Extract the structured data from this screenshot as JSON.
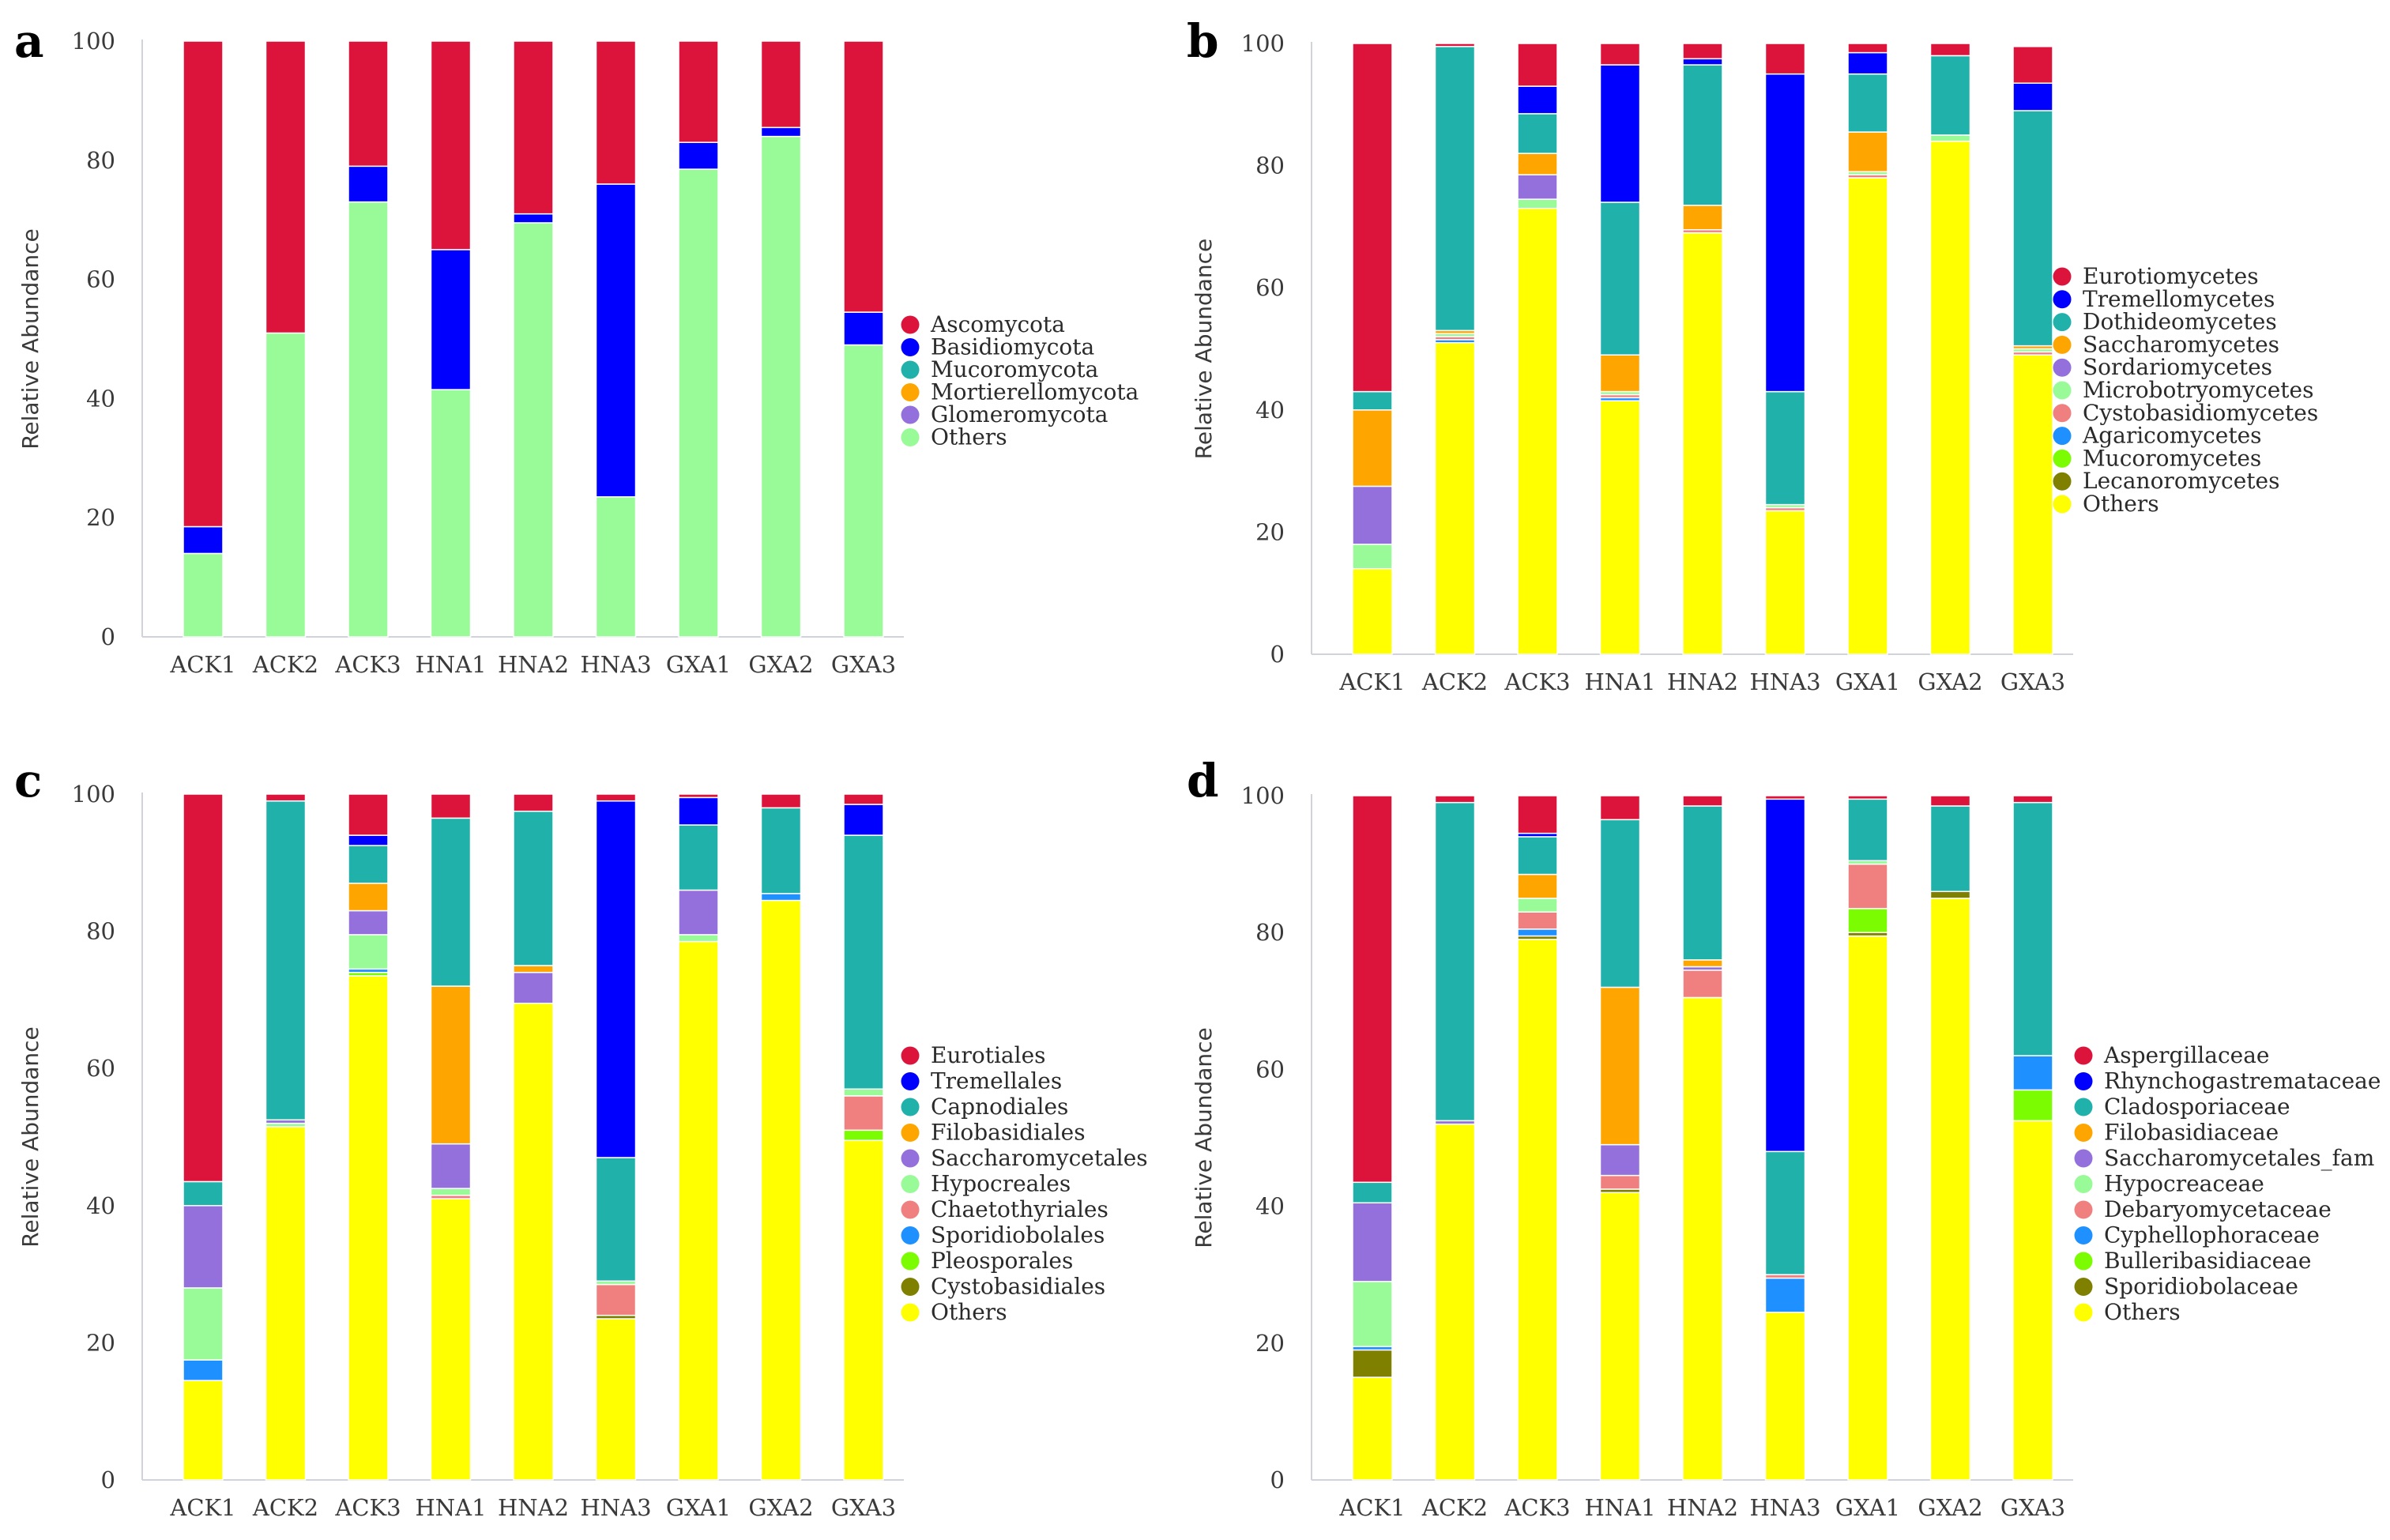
{
  "chart_data": [
    {
      "type": "stacked-bar",
      "panel_letter": "a",
      "ylabel": "Relative Abundance",
      "ylim": [
        0,
        100
      ],
      "yticks": [
        "0",
        "20",
        "40",
        "60",
        "80",
        "100"
      ],
      "categories": [
        "ACK1",
        "ACK2",
        "ACK3",
        "HNA1",
        "HNA2",
        "HNA3",
        "GXA1",
        "GXA2",
        "GXA3"
      ],
      "legend_position": "right",
      "series": [
        {
          "name": "Others",
          "color": "#98fb98",
          "values": [
            14,
            51,
            73,
            41.5,
            69.5,
            23.5,
            78.5,
            84,
            49
          ]
        },
        {
          "name": "Glomeromycota",
          "color": "#9370db",
          "values": [
            0,
            0,
            0,
            0,
            0,
            0,
            0,
            0,
            0
          ]
        },
        {
          "name": "Mortierellomycota",
          "color": "#ffa500",
          "values": [
            0,
            0,
            0,
            0,
            0,
            0,
            0,
            0,
            0
          ]
        },
        {
          "name": "Mucoromycota",
          "color": "#20b2aa",
          "values": [
            0,
            0,
            0,
            0,
            0,
            0,
            0,
            0,
            0
          ]
        },
        {
          "name": "Basidiomycota",
          "color": "#0000ff",
          "values": [
            4.5,
            0,
            6,
            23.5,
            1.5,
            52.5,
            4.5,
            1.5,
            5.5
          ]
        },
        {
          "name": "Ascomycota",
          "color": "#dc143c",
          "values": [
            81.5,
            49,
            21,
            35,
            29,
            24,
            17,
            14.5,
            45.5
          ]
        }
      ],
      "legend_order": [
        "Ascomycota",
        "Basidiomycota",
        "Mucoromycota",
        "Mortierellomycota",
        "Glomeromycota",
        "Others"
      ]
    },
    {
      "type": "stacked-bar",
      "panel_letter": "b",
      "ylabel": "Relative Abundance",
      "ylim": [
        0,
        100
      ],
      "yticks": [
        "0",
        "20",
        "40",
        "60",
        "80",
        "100"
      ],
      "categories": [
        "ACK1",
        "ACK2",
        "ACK3",
        "HNA1",
        "HNA2",
        "HNA3",
        "GXA1",
        "GXA2",
        "GXA3"
      ],
      "legend_position": "right",
      "series": [
        {
          "name": "Others",
          "color": "#ffff00",
          "values": [
            14,
            51,
            73,
            41.5,
            69,
            23.5,
            78,
            84,
            49
          ]
        },
        {
          "name": "Lecanoromycetes",
          "color": "#808000",
          "values": [
            0,
            0,
            0,
            0,
            0,
            0,
            0,
            0,
            0
          ]
        },
        {
          "name": "Mucoromycetes",
          "color": "#7cfc00",
          "values": [
            0,
            0,
            0,
            0,
            0,
            0,
            0,
            0,
            0
          ]
        },
        {
          "name": "Agaricomycetes",
          "color": "#1e90ff",
          "values": [
            0,
            0.5,
            0,
            0.5,
            0,
            0,
            0,
            0,
            0
          ]
        },
        {
          "name": "Cystobasidiomycetes",
          "color": "#f08080",
          "values": [
            0,
            0.5,
            0,
            0.5,
            0.5,
            0.5,
            0.5,
            0,
            0.5
          ]
        },
        {
          "name": "Microbotryomycetes",
          "color": "#98fb98",
          "values": [
            4,
            0.5,
            1.5,
            0.5,
            0,
            0.5,
            0.5,
            1,
            0.5
          ]
        },
        {
          "name": "Sordariomycetes",
          "color": "#9370db",
          "values": [
            9.5,
            0,
            4,
            0,
            0,
            0,
            0,
            0,
            0
          ]
        },
        {
          "name": "Saccharomycetes",
          "color": "#ffa500",
          "values": [
            12.5,
            0.5,
            3.5,
            6,
            4,
            0,
            6.5,
            0,
            0.5
          ]
        },
        {
          "name": "Dothideomycetes",
          "color": "#20b2aa",
          "values": [
            3,
            46.5,
            6.5,
            25,
            23,
            18.5,
            9.5,
            13,
            38.5
          ]
        },
        {
          "name": "Tremellomycetes",
          "color": "#0000ff",
          "values": [
            0,
            0,
            4.5,
            22.5,
            1,
            52,
            3.5,
            0,
            4.5
          ]
        },
        {
          "name": "Eurotiomycetes",
          "color": "#dc143c",
          "values": [
            57,
            0.5,
            7,
            3.5,
            2.5,
            5,
            1.5,
            2,
            6
          ]
        }
      ],
      "legend_order": [
        "Eurotiomycetes",
        "Tremellomycetes",
        "Dothideomycetes",
        "Saccharomycetes",
        "Sordariomycetes",
        "Microbotryomycetes",
        "Cystobasidiomycetes",
        "Agaricomycetes",
        "Mucoromycetes",
        "Lecanoromycetes",
        "Others"
      ]
    },
    {
      "type": "stacked-bar",
      "panel_letter": "c",
      "ylabel": "Relative Abundance",
      "ylim": [
        0,
        100
      ],
      "yticks": [
        "0",
        "20",
        "40",
        "60",
        "80",
        "100"
      ],
      "categories": [
        "ACK1",
        "ACK2",
        "ACK3",
        "HNA1",
        "HNA2",
        "HNA3",
        "GXA1",
        "GXA2",
        "GXA3"
      ],
      "legend_position": "right",
      "series": [
        {
          "name": "Others",
          "color": "#ffff00",
          "values": [
            14.5,
            51.5,
            73.5,
            41,
            69.5,
            23.5,
            78.5,
            84.5,
            49.5
          ]
        },
        {
          "name": "Cystobasidiales",
          "color": "#808000",
          "values": [
            0,
            0,
            0,
            0,
            0,
            0.5,
            0,
            0,
            0
          ]
        },
        {
          "name": "Pleosporales",
          "color": "#7cfc00",
          "values": [
            0,
            0,
            0.5,
            0,
            0,
            0,
            0,
            0,
            1.5
          ]
        },
        {
          "name": "Sporidiobolales",
          "color": "#1e90ff",
          "values": [
            3,
            0,
            0.5,
            0,
            0,
            0,
            0,
            1,
            0
          ]
        },
        {
          "name": "Chaetothyriales",
          "color": "#f08080",
          "values": [
            0,
            0,
            0,
            0.5,
            0,
            4.5,
            0,
            0,
            5
          ]
        },
        {
          "name": "Hypocreales",
          "color": "#98fb98",
          "values": [
            10.5,
            0.5,
            5,
            1,
            0,
            0.5,
            1,
            0,
            1
          ]
        },
        {
          "name": "Saccharomycetales",
          "color": "#9370db",
          "values": [
            12,
            0.5,
            3.5,
            6.5,
            4.5,
            0,
            6.5,
            0,
            0
          ]
        },
        {
          "name": "Filobasidiales",
          "color": "#ffa500",
          "values": [
            0,
            0,
            4,
            23,
            1,
            0,
            0,
            0,
            0
          ]
        },
        {
          "name": "Capnodiales",
          "color": "#20b2aa",
          "values": [
            3.5,
            46.5,
            5.5,
            24.5,
            22.5,
            18,
            9.5,
            12.5,
            37
          ]
        },
        {
          "name": "Tremellales",
          "color": "#0000ff",
          "values": [
            0,
            0,
            1.5,
            0,
            0,
            52,
            4,
            0,
            4.5
          ]
        },
        {
          "name": "Eurotiales",
          "color": "#dc143c",
          "values": [
            56.5,
            1,
            6,
            3.5,
            2.5,
            1,
            0.5,
            2,
            1.5
          ]
        }
      ],
      "legend_order": [
        "Eurotiales",
        "Tremellales",
        "Capnodiales",
        "Filobasidiales",
        "Saccharomycetales",
        "Hypocreales",
        "Chaetothyriales",
        "Sporidiobolales",
        "Pleosporales",
        "Cystobasidiales",
        "Others"
      ]
    },
    {
      "type": "stacked-bar",
      "panel_letter": "d",
      "ylabel": "Relative Abundance",
      "ylim": [
        0,
        100
      ],
      "yticks": [
        "0",
        "20",
        "40",
        "60",
        "80",
        "100"
      ],
      "categories": [
        "ACK1",
        "ACK2",
        "ACK3",
        "HNA1",
        "HNA2",
        "HNA3",
        "GXA1",
        "GXA2",
        "GXA3"
      ],
      "legend_position": "right",
      "series": [
        {
          "name": "Others",
          "color": "#ffff00",
          "values": [
            15,
            52,
            79,
            42,
            70.5,
            24.5,
            79.5,
            85,
            52.5
          ]
        },
        {
          "name": "Sporidiobolaceae",
          "color": "#808000",
          "values": [
            4,
            0,
            0.5,
            0.5,
            0,
            0,
            0.5,
            1,
            0
          ]
        },
        {
          "name": "Bulleribasidiaceae",
          "color": "#7cfc00",
          "values": [
            0,
            0,
            0,
            0,
            0,
            0,
            3.5,
            0,
            4.5
          ]
        },
        {
          "name": "Cyphellophoraceae",
          "color": "#1e90ff",
          "values": [
            0.5,
            0,
            1,
            0,
            0,
            5,
            0,
            0,
            5
          ]
        },
        {
          "name": "Debaryomycetaceae",
          "color": "#f08080",
          "values": [
            0,
            0,
            2.5,
            2,
            4,
            0.5,
            6.5,
            0,
            0
          ]
        },
        {
          "name": "Hypocreaceae",
          "color": "#98fb98",
          "values": [
            9.5,
            0,
            2,
            0,
            0,
            0,
            0.5,
            0,
            0
          ]
        },
        {
          "name": "Saccharomycetales_fam",
          "color": "#9370db",
          "values": [
            11.5,
            0.5,
            0,
            4.5,
            0.5,
            0,
            0,
            0,
            0
          ]
        },
        {
          "name": "Filobasidiaceae",
          "color": "#ffa500",
          "values": [
            0,
            0,
            3.5,
            23,
            1,
            0,
            0,
            0,
            0
          ]
        },
        {
          "name": "Cladosporiaceae",
          "color": "#20b2aa",
          "values": [
            3,
            46.5,
            5.5,
            24.5,
            22.5,
            18,
            9,
            12.5,
            37
          ]
        },
        {
          "name": "Rhynchogastremataceae",
          "color": "#0000ff",
          "values": [
            0,
            0,
            0.5,
            0,
            0,
            51.5,
            0,
            0,
            0
          ]
        },
        {
          "name": "Aspergillaceae",
          "color": "#dc143c",
          "values": [
            56.5,
            1,
            5.5,
            3.5,
            1.5,
            0.5,
            0.5,
            1.5,
            1
          ]
        }
      ],
      "legend_order": [
        "Aspergillaceae",
        "Rhynchogastremataceae",
        "Cladosporiaceae",
        "Filobasidiaceae",
        "Saccharomycetales_fam",
        "Hypocreaceae",
        "Debaryomycetaceae",
        "Cyphellophoraceae",
        "Bulleribasidiaceae",
        "Sporidiobolaceae",
        "Others"
      ]
    }
  ]
}
